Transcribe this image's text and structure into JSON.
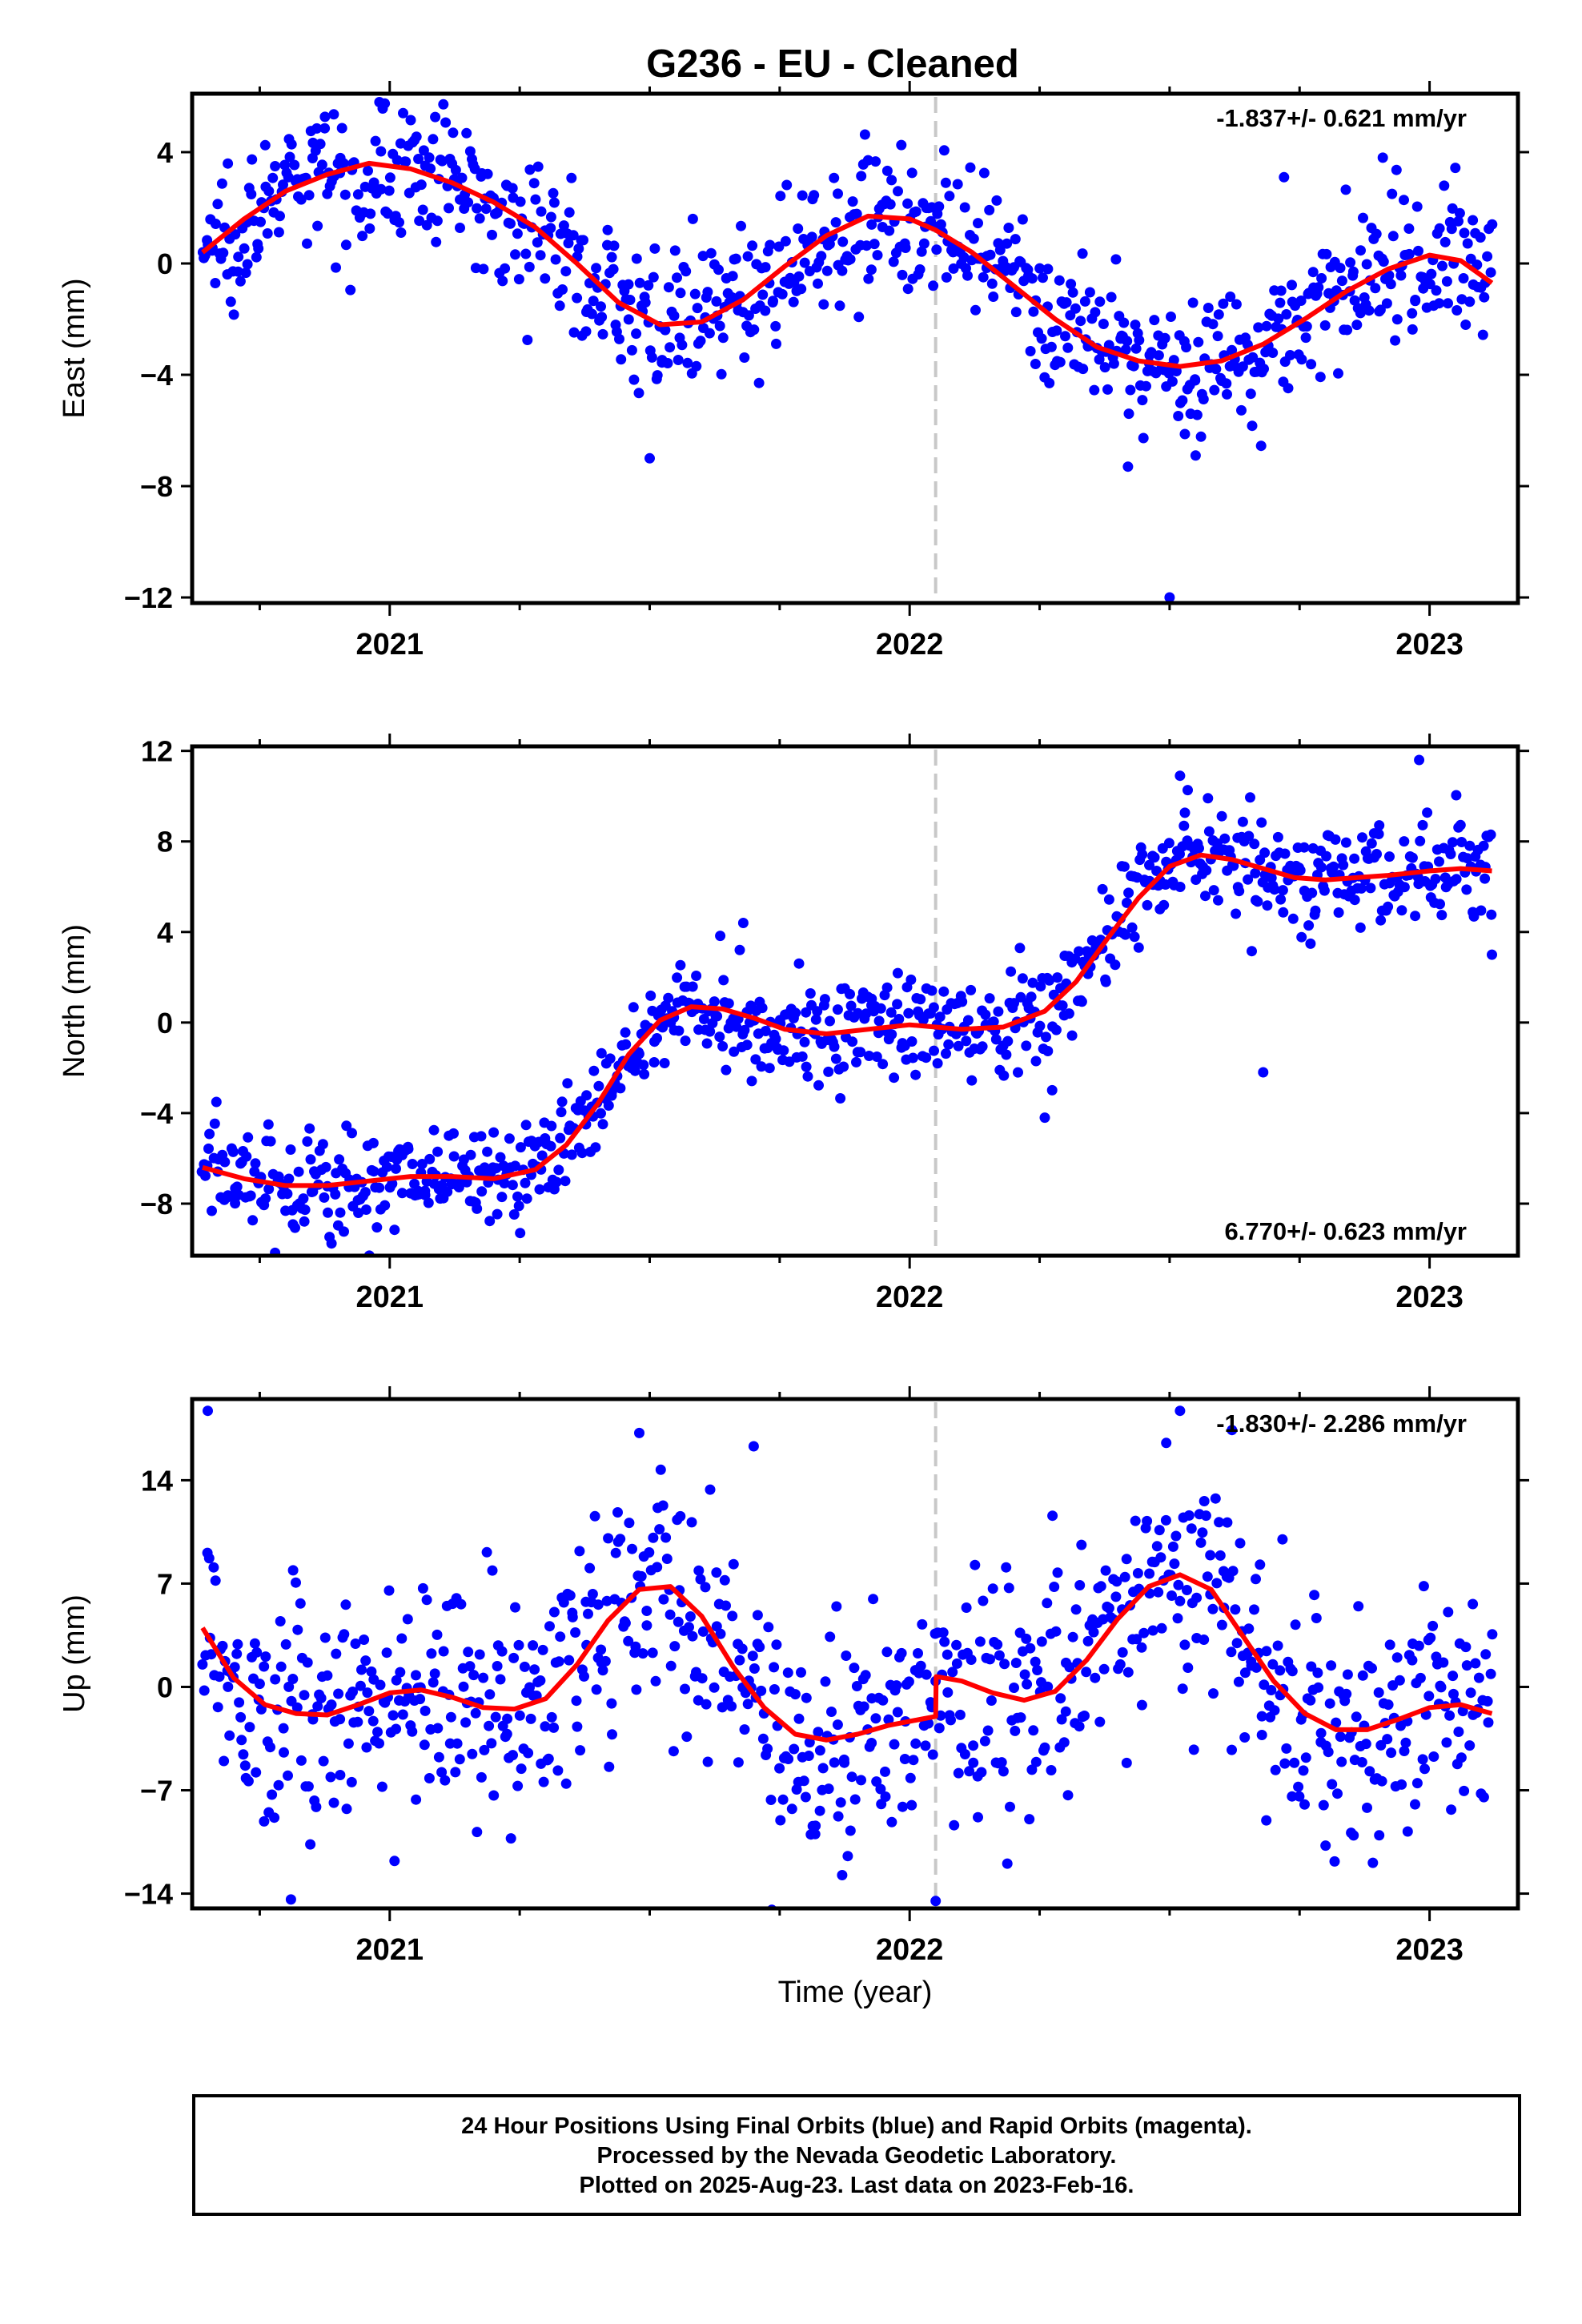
{
  "title": "G236  - EU - Cleaned",
  "xlabel": "Time (year)",
  "footer": {
    "line1": "24 Hour Positions Using Final Orbits (blue) and Rapid Orbits (magenta).",
    "line2": "Processed by the Nevada Geodetic Laboratory.",
    "line3": "Plotted on 2025-Aug-23. Last data on 2023-Feb-16."
  },
  "colors": {
    "points": "#0000ff",
    "model": "#ff0000",
    "break_line": "#c8c8c8",
    "frame": "#000000"
  },
  "chart_data": [
    {
      "type": "scatter",
      "ylabel": "East (mm)",
      "rate_label": "-1.837+/- 0.621 mm/yr",
      "rate_position": "top-right",
      "xlim": [
        2020.62,
        2023.17
      ],
      "ylim": [
        -12.2,
        6.1
      ],
      "yticks": [
        4,
        0,
        -4,
        -8,
        -12
      ],
      "ytick_labels": [
        "4",
        "0",
        "−4",
        "−8",
        "−12"
      ],
      "xticks": [
        2021,
        2022,
        2023
      ],
      "xtick_labels": [
        "2021",
        "2022",
        "2023"
      ],
      "equipment_break": 2022.05,
      "model_curve": {
        "name": "model fit",
        "x": [
          2020.64,
          2020.72,
          2020.8,
          2020.88,
          2020.96,
          2021.04,
          2021.12,
          2021.2,
          2021.28,
          2021.36,
          2021.44,
          2021.52,
          2021.6,
          2021.68,
          2021.76,
          2021.84,
          2021.92,
          2022.0,
          2022.05,
          2022.12,
          2022.2,
          2022.28,
          2022.36,
          2022.44,
          2022.52,
          2022.6,
          2022.68,
          2022.76,
          2022.84,
          2022.92,
          2023.0,
          2023.06,
          2023.12
        ],
        "y": [
          0.4,
          1.6,
          2.6,
          3.2,
          3.6,
          3.4,
          2.9,
          2.2,
          1.3,
          0.0,
          -1.4,
          -2.2,
          -2.1,
          -1.3,
          -0.1,
          1.0,
          1.7,
          1.6,
          1.2,
          0.4,
          -0.8,
          -2.0,
          -3.0,
          -3.5,
          -3.7,
          -3.5,
          -2.9,
          -2.0,
          -1.0,
          -0.2,
          0.3,
          0.1,
          -0.7
        ]
      },
      "scatter": {
        "n": 850,
        "noise_sd": 1.25,
        "outliers": [
          [
            2021.5,
            -7.0
          ],
          [
            2022.42,
            -7.3
          ],
          [
            2022.5,
            -12.0
          ],
          [
            2022.55,
            -6.9
          ],
          [
            2022.72,
            3.1
          ],
          [
            2022.91,
            3.8
          ]
        ]
      }
    },
    {
      "type": "scatter",
      "ylabel": "North (mm)",
      "rate_label": "6.770+/- 0.623 mm/yr",
      "rate_position": "bottom-right",
      "xlim": [
        2020.62,
        2023.17
      ],
      "ylim": [
        -10.3,
        12.2
      ],
      "yticks": [
        12,
        8,
        4,
        0,
        -4,
        -8
      ],
      "ytick_labels": [
        "12",
        "8",
        "4",
        "0",
        "−4",
        "−8"
      ],
      "xticks": [
        2021,
        2022,
        2023
      ],
      "xtick_labels": [
        "2021",
        "2022",
        "2023"
      ],
      "equipment_break": 2022.05,
      "model_curve": {
        "name": "model fit",
        "x": [
          2020.64,
          2020.72,
          2020.8,
          2020.88,
          2020.96,
          2021.04,
          2021.12,
          2021.2,
          2021.28,
          2021.34,
          2021.4,
          2021.46,
          2021.52,
          2021.58,
          2021.64,
          2021.7,
          2021.76,
          2021.84,
          2021.92,
          2022.0,
          2022.05,
          2022.1,
          2022.18,
          2022.26,
          2022.32,
          2022.38,
          2022.44,
          2022.5,
          2022.56,
          2022.62,
          2022.68,
          2022.74,
          2022.8,
          2022.86,
          2022.92,
          2023.0,
          2023.06,
          2023.12
        ],
        "y": [
          -6.4,
          -6.9,
          -7.2,
          -7.2,
          -7.0,
          -6.8,
          -6.8,
          -6.9,
          -6.5,
          -5.4,
          -3.6,
          -1.4,
          0.1,
          0.7,
          0.6,
          0.2,
          -0.3,
          -0.5,
          -0.3,
          -0.1,
          -0.2,
          -0.3,
          -0.2,
          0.5,
          1.8,
          3.7,
          5.5,
          6.9,
          7.4,
          7.2,
          6.8,
          6.4,
          6.3,
          6.4,
          6.5,
          6.7,
          6.8,
          6.7
        ]
      },
      "scatter": {
        "n": 850,
        "noise_sd": 1.2,
        "outliers": [
          [
            2021.68,
            4.4
          ],
          [
            2022.26,
            -4.2
          ],
          [
            2022.52,
            10.9
          ],
          [
            2022.68,
            -2.2
          ],
          [
            2022.98,
            11.6
          ],
          [
            2023.12,
            3.0
          ]
        ]
      }
    },
    {
      "type": "scatter",
      "ylabel": "Up (mm)",
      "rate_label": "-1.830+/- 2.286 mm/yr",
      "rate_position": "top-right",
      "xlim": [
        2020.62,
        2023.17
      ],
      "ylim": [
        -15.0,
        19.5
      ],
      "yticks": [
        14,
        7,
        0,
        -7,
        -14
      ],
      "ytick_labels": [
        "14",
        "7",
        "0",
        "−7",
        "−14"
      ],
      "xticks": [
        2021,
        2022,
        2023
      ],
      "xtick_labels": [
        "2021",
        "2022",
        "2023"
      ],
      "equipment_break": 2022.05,
      "model_curve": {
        "name": "model fit",
        "x": [
          2020.64,
          2020.7,
          2020.76,
          2020.82,
          2020.88,
          2020.94,
          2021.0,
          2021.06,
          2021.12,
          2021.18,
          2021.24,
          2021.3,
          2021.36,
          2021.42,
          2021.48,
          2021.54,
          2021.6,
          2021.66,
          2021.72,
          2021.78,
          2021.84,
          2021.9,
          2021.96,
          2022.02,
          2022.05,
          2022.051,
          2022.1,
          2022.16,
          2022.22,
          2022.28,
          2022.34,
          2022.4,
          2022.46,
          2022.52,
          2022.58,
          2022.64,
          2022.7,
          2022.76,
          2022.82,
          2022.88,
          2022.94,
          2023.0,
          2023.06,
          2023.12
        ],
        "y": [
          4.0,
          0.6,
          -1.2,
          -1.8,
          -1.9,
          -1.2,
          -0.4,
          -0.2,
          -0.7,
          -1.4,
          -1.5,
          -0.8,
          1.5,
          4.5,
          6.6,
          6.8,
          4.8,
          1.4,
          -1.4,
          -3.2,
          -3.6,
          -3.2,
          -2.6,
          -2.2,
          -2.0,
          0.7,
          0.4,
          -0.4,
          -0.9,
          -0.3,
          1.8,
          4.6,
          6.8,
          7.6,
          6.6,
          3.5,
          0.4,
          -1.8,
          -2.9,
          -2.9,
          -2.2,
          -1.4,
          -1.2,
          -1.8
        ]
      },
      "scatter": {
        "n": 850,
        "noise_sd": 4.0,
        "outliers": [
          [
            2020.65,
            18.7
          ],
          [
            2021.48,
            17.2
          ],
          [
            2021.7,
            16.3
          ],
          [
            2022.05,
            -14.5
          ],
          [
            2022.52,
            18.7
          ],
          [
            2022.62,
            17.4
          ],
          [
            2020.81,
            -14.4
          ]
        ]
      }
    }
  ]
}
